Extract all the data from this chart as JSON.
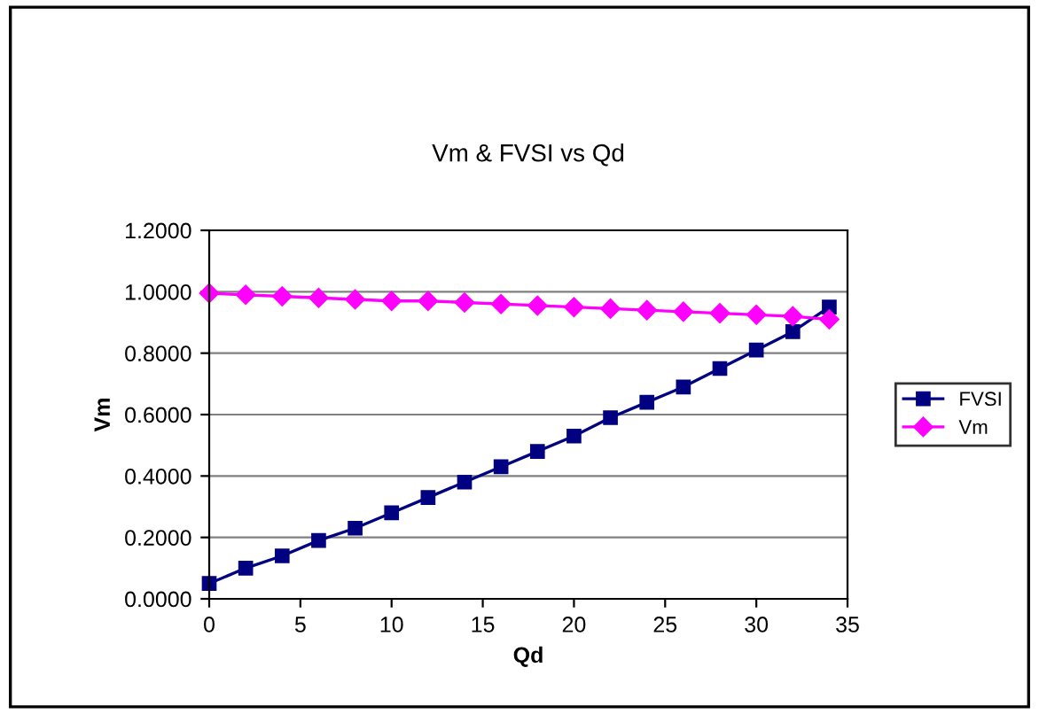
{
  "chart_data": {
    "type": "line",
    "title": "Vm & FVSI vs Qd",
    "xlabel": "Qd",
    "ylabel": "Vm",
    "x": [
      0,
      2,
      4,
      6,
      8,
      10,
      12,
      14,
      16,
      18,
      20,
      22,
      24,
      26,
      28,
      30,
      32,
      34
    ],
    "series": [
      {
        "name": "FVSI",
        "color": "#000080",
        "marker": "square",
        "values": [
          0.05,
          0.1,
          0.14,
          0.19,
          0.23,
          0.28,
          0.33,
          0.38,
          0.43,
          0.48,
          0.53,
          0.59,
          0.64,
          0.69,
          0.75,
          0.81,
          0.87,
          0.95
        ]
      },
      {
        "name": "Vm",
        "color": "#ff00ff",
        "marker": "diamond",
        "values": [
          0.995,
          0.99,
          0.985,
          0.98,
          0.975,
          0.97,
          0.97,
          0.965,
          0.96,
          0.955,
          0.95,
          0.945,
          0.94,
          0.935,
          0.93,
          0.925,
          0.92,
          0.91
        ]
      }
    ],
    "xlim": [
      0,
      35
    ],
    "xticks": [
      0,
      5,
      10,
      15,
      20,
      25,
      30,
      35
    ],
    "ylim": [
      0,
      1.2
    ],
    "yticks": [
      {
        "value": 0,
        "label": "0.0000"
      },
      {
        "value": 0.2,
        "label": "0.2000"
      },
      {
        "value": 0.4,
        "label": "0.4000"
      },
      {
        "value": 0.6,
        "label": "0.6000"
      },
      {
        "value": 0.8,
        "label": "0.8000"
      },
      {
        "value": 1.0,
        "label": "1.0000"
      },
      {
        "value": 1.2,
        "label": "1.2000"
      }
    ],
    "grid": "y",
    "legend": "right",
    "line_style": "solid"
  }
}
